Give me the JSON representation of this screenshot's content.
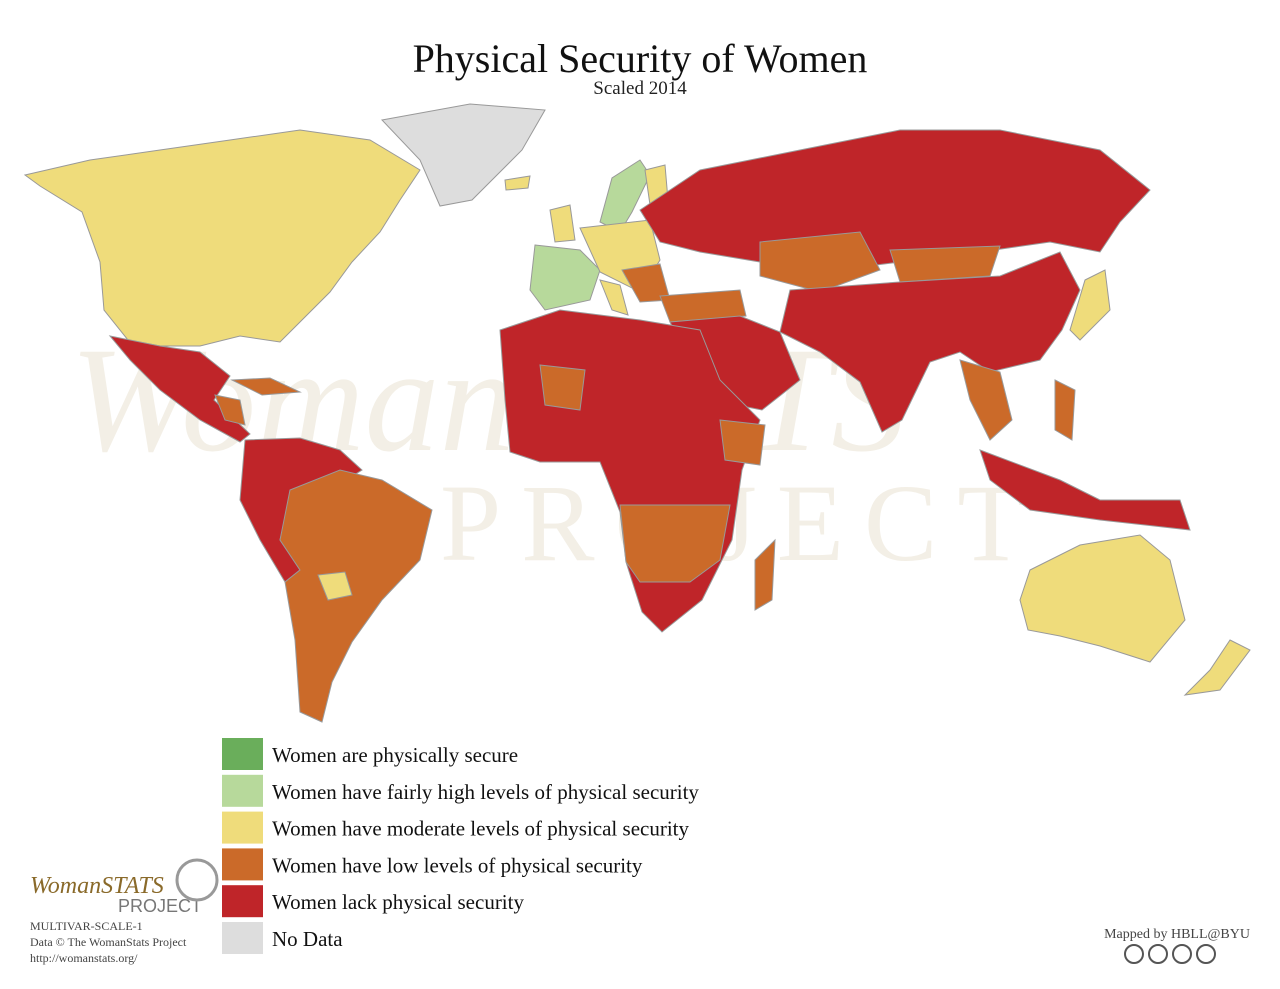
{
  "header": {
    "title": "Physical Security of Women",
    "subtitle": "Scaled 2014"
  },
  "watermark": {
    "brand": "WomanSTATS",
    "line2": "PROJECT"
  },
  "legend": [
    {
      "label": "Women are physically secure",
      "color": "#6aae5b"
    },
    {
      "label": "Women have fairly high levels of physical security",
      "color": "#b7d99b"
    },
    {
      "label": "Women have moderate levels of physical security",
      "color": "#efdc7b"
    },
    {
      "label": "Women have low levels of physical security",
      "color": "#cb6a29"
    },
    {
      "label": "Women lack physical security",
      "color": "#bf2529"
    },
    {
      "label": "No Data",
      "color": "#dddddd"
    }
  ],
  "logo": {
    "brand": "WomanSTATS",
    "line2": "PROJECT"
  },
  "footer": {
    "code": "MULTIVAR-SCALE-1",
    "copyright": "Data © The WomanStats Project",
    "url": "http://womanstats.org/",
    "credit": "Mapped by HBLL@BYU"
  }
}
